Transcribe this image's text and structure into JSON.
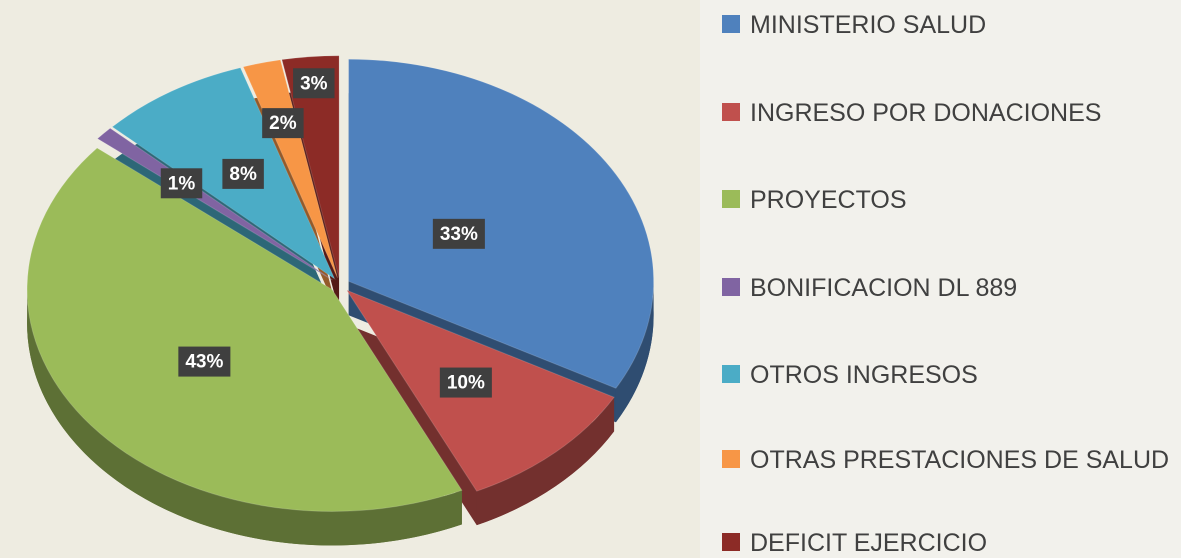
{
  "chart_data": {
    "type": "pie",
    "categories": [
      "MINISTERIO SALUD",
      "INGRESO POR DONACIONES",
      "PROYECTOS",
      "BONIFICACION DL 889",
      "OTROS INGRESOS",
      "OTRAS PRESTACIONES DE SALUD",
      "DEFICIT EJERCICIO"
    ],
    "values": [
      33,
      10,
      43,
      1,
      8,
      2,
      3
    ],
    "value_labels": [
      "33%",
      "10%",
      "43%",
      "1%",
      "8%",
      "2%",
      "3%"
    ],
    "colors": [
      "#4f81bd",
      "#c0504d",
      "#9bbb59",
      "#8064a2",
      "#4bacc6",
      "#f79646",
      "#8c2b26"
    ],
    "legend": "right"
  }
}
